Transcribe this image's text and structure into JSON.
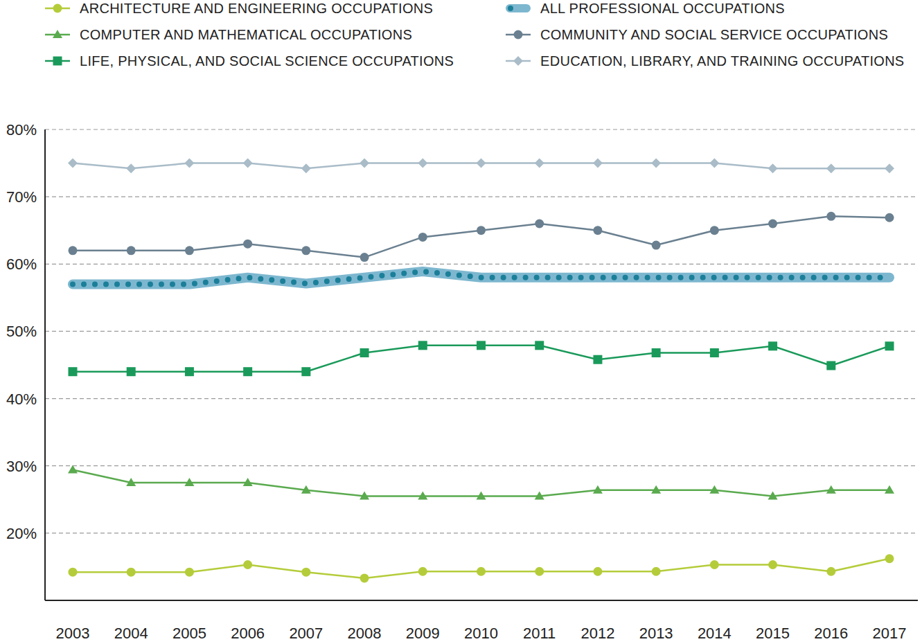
{
  "chart_data": {
    "type": "line",
    "categories": [
      "2003",
      "2004",
      "2005",
      "2006",
      "2007",
      "2008",
      "2009",
      "2010",
      "2011",
      "2012",
      "2013",
      "2014",
      "2015",
      "2016",
      "2017"
    ],
    "series": [
      {
        "name": "ARCHITECTURE AND ENGINEERING OCCUPATIONS",
        "color": "#b5cc3a",
        "marker": "circle",
        "line_style": "solid",
        "values": [
          14.2,
          14.2,
          14.2,
          15.3,
          14.2,
          13.3,
          14.3,
          14.3,
          14.3,
          14.3,
          14.3,
          15.3,
          15.3,
          14.3,
          16.2
        ]
      },
      {
        "name": "COMPUTER AND MATHEMATICAL OCCUPATIONS",
        "color": "#5aaa4e",
        "marker": "triangle",
        "line_style": "solid",
        "values": [
          29.4,
          27.5,
          27.5,
          27.5,
          26.4,
          25.5,
          25.5,
          25.5,
          25.5,
          26.4,
          26.4,
          26.4,
          25.5,
          26.4,
          26.4
        ]
      },
      {
        "name": "LIFE, PHYSICAL, AND SOCIAL SCIENCE OCCUPATIONS",
        "color": "#1a9a5a",
        "marker": "square",
        "line_style": "solid",
        "values": [
          44,
          44,
          44,
          44,
          44,
          46.8,
          47.9,
          47.9,
          47.9,
          45.8,
          46.8,
          46.8,
          47.8,
          44.9,
          47.8
        ]
      },
      {
        "name": "ALL PROFESSIONAL OCCUPATIONS",
        "color": "#1b7f99",
        "line_style": "dotted",
        "values": [
          57,
          57,
          57,
          58,
          57.1,
          58,
          58.9,
          58,
          58,
          58,
          58,
          58,
          58,
          58,
          58
        ]
      },
      {
        "name": "COMMUNITY AND SOCIAL SERVICE OCCUPATIONS",
        "color": "#6a8090",
        "marker": "circle",
        "line_style": "solid",
        "values": [
          62,
          62,
          62,
          63,
          62,
          61,
          64,
          65,
          66,
          65,
          62.8,
          65,
          66,
          67.1,
          66.9
        ]
      },
      {
        "name": "EDUCATION, LIBRARY, AND TRAINING OCCUPATIONS",
        "color": "#a9bcc8",
        "marker": "diamond",
        "line_style": "solid",
        "values": [
          75,
          74.2,
          75,
          75,
          74.2,
          75,
          75,
          75,
          75,
          75,
          75,
          75,
          74.2,
          74.2,
          74.2
        ]
      }
    ],
    "ylim": [
      10,
      80
    ],
    "yticks": [
      {
        "value": 20,
        "label": "20%"
      },
      {
        "value": 30,
        "label": "30%"
      },
      {
        "value": 40,
        "label": "40%"
      },
      {
        "value": 50,
        "label": "50%"
      },
      {
        "value": 60,
        "label": "60%"
      },
      {
        "value": 70,
        "label": "70%"
      },
      {
        "value": 80,
        "label": "80%"
      }
    ],
    "grid": true,
    "legend": "top"
  }
}
